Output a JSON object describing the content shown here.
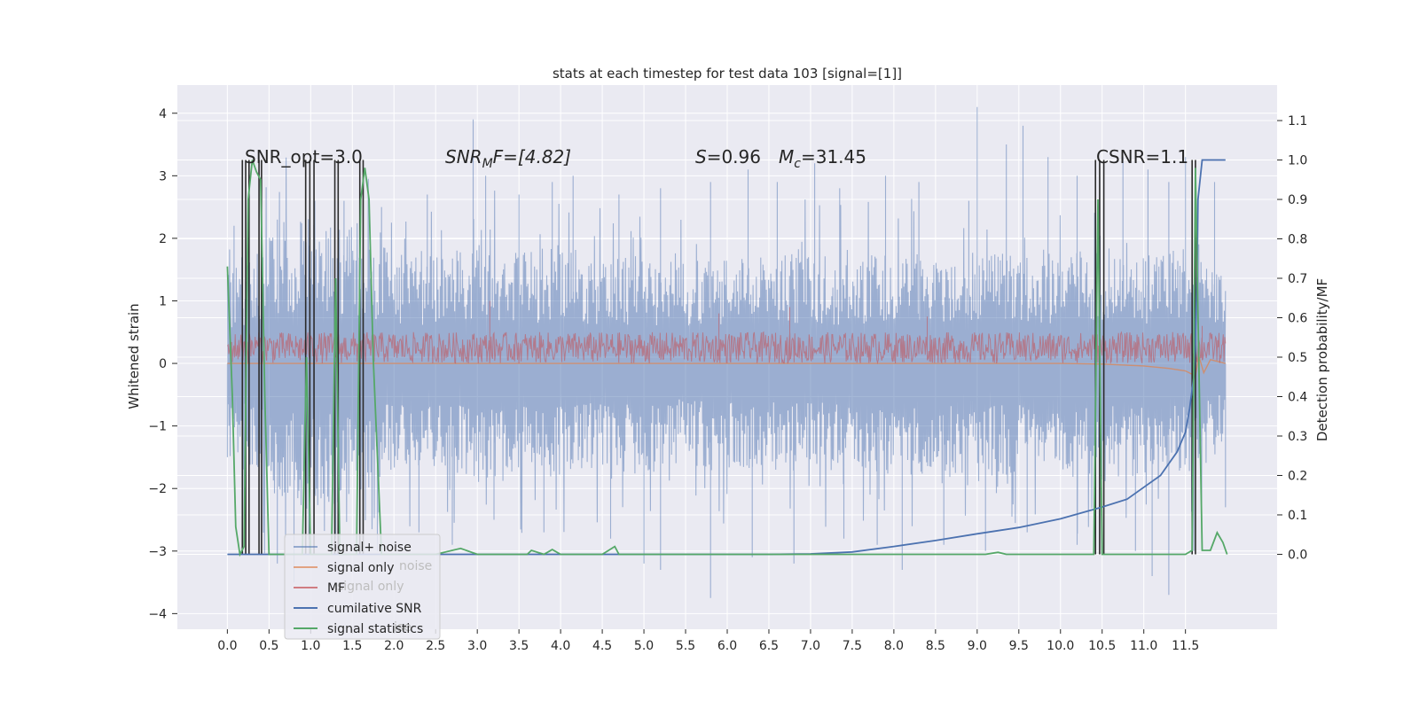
{
  "chart_data": {
    "type": "line",
    "title": "stats at each timestep for test data 103 [signal=[1]]",
    "xlabel": "",
    "ylabel": "Whitened strain",
    "y2label": "Detection probability/MF",
    "xlim": [
      -0.6,
      12.6
    ],
    "ylim": [
      -4.25,
      4.45
    ],
    "y2lim": [
      -0.19,
      1.19
    ],
    "xticks": [
      "0.0",
      "0.5",
      "1.0",
      "1.5",
      "2.0",
      "2.5",
      "3.0",
      "3.5",
      "4.0",
      "4.5",
      "5.0",
      "5.5",
      "6.0",
      "6.5",
      "7.0",
      "7.5",
      "8.0",
      "8.5",
      "9.0",
      "9.5",
      "10.0",
      "10.5",
      "11.0",
      "11.5"
    ],
    "yticks": [
      "4",
      "3",
      "2",
      "1",
      "0",
      "−1",
      "−2",
      "−3",
      "−4"
    ],
    "y2ticks": [
      "1.1",
      "1.0",
      "0.9",
      "0.8",
      "0.7",
      "0.6",
      "0.5",
      "0.4",
      "0.3",
      "0.2",
      "0.1",
      "0.0"
    ],
    "grid": true,
    "legend_position": "lower-left",
    "annotations": {
      "snr_opt": "SNR_opt=3.0",
      "snr_mf_name": "SNR",
      "snr_mf_sub": "M",
      "snr_mf_rest": "F=[4.82]",
      "s_name": "S",
      "s_rest": "=0.96",
      "mc_name": "M",
      "mc_sub": "c",
      "mc_rest": "=31.45",
      "csnr": "CSNR=1.1"
    },
    "legend": {
      "entries": [
        "signal+ noise",
        "signal only",
        "MF",
        "cumilative SNR",
        "signal statistics"
      ],
      "ghost": [
        "noise",
        "signal only",
        "ise"
      ]
    },
    "series": [
      {
        "name": "signal+ noise",
        "axis": "left",
        "color": "#4c72b0",
        "x_range": [
          0.0,
          11.98
        ],
        "envelope_upper": [
          [
            0.0,
            1.5
          ],
          [
            0.5,
            2.1
          ],
          [
            1.0,
            2.4
          ],
          [
            1.5,
            2.2
          ],
          [
            2.0,
            1.8
          ],
          [
            2.5,
            1.7
          ],
          [
            3.0,
            1.9
          ],
          [
            3.5,
            1.8
          ],
          [
            4.0,
            1.9
          ],
          [
            4.5,
            1.7
          ],
          [
            5.0,
            1.8
          ],
          [
            5.5,
            1.6
          ],
          [
            6.0,
            1.8
          ],
          [
            6.5,
            1.7
          ],
          [
            7.0,
            1.8
          ],
          [
            7.5,
            1.7
          ],
          [
            8.0,
            1.8
          ],
          [
            8.5,
            1.8
          ],
          [
            9.0,
            1.9
          ],
          [
            9.5,
            1.8
          ],
          [
            10.0,
            1.8
          ],
          [
            10.5,
            1.9
          ],
          [
            11.0,
            1.8
          ],
          [
            11.5,
            1.9
          ],
          [
            11.98,
            1.3
          ]
        ],
        "peaks": [
          [
            0.08,
            2.2
          ],
          [
            0.6,
            2.3
          ],
          [
            1.05,
            2.6
          ],
          [
            1.4,
            2.6
          ],
          [
            1.85,
            2.5
          ],
          [
            2.4,
            2.7
          ],
          [
            2.95,
            3.9
          ],
          [
            3.1,
            3.0
          ],
          [
            3.5,
            2.7
          ],
          [
            3.9,
            2.9
          ],
          [
            4.15,
            3.0
          ],
          [
            4.7,
            2.7
          ],
          [
            5.2,
            2.8
          ],
          [
            5.8,
            2.9
          ],
          [
            6.25,
            3.1
          ],
          [
            6.6,
            2.9
          ],
          [
            7.05,
            3.2
          ],
          [
            7.35,
            2.8
          ],
          [
            7.9,
            3.0
          ],
          [
            8.3,
            2.9
          ],
          [
            8.9,
            2.6
          ],
          [
            9.0,
            4.1
          ],
          [
            9.35,
            3.5
          ],
          [
            9.55,
            3.8
          ],
          [
            9.85,
            3.3
          ],
          [
            10.2,
            3.0
          ],
          [
            10.75,
            3.3
          ],
          [
            11.05,
            3.1
          ],
          [
            11.3,
            2.9
          ],
          [
            11.5,
            3.3
          ],
          [
            11.85,
            2.9
          ]
        ],
        "troughs": [
          [
            0.0,
            -1.5
          ],
          [
            0.2,
            -2.5
          ],
          [
            0.6,
            -3.2
          ],
          [
            0.8,
            -3.5
          ],
          [
            1.3,
            -2.8
          ],
          [
            1.8,
            -3.0
          ],
          [
            2.3,
            -2.7
          ],
          [
            2.7,
            -2.9
          ],
          [
            3.2,
            -2.5
          ],
          [
            3.8,
            -2.7
          ],
          [
            4.6,
            -2.8
          ],
          [
            5.0,
            -3.2
          ],
          [
            5.2,
            -3.3
          ],
          [
            5.8,
            -3.75
          ],
          [
            6.3,
            -3.1
          ],
          [
            6.8,
            -3.2
          ],
          [
            7.4,
            -2.8
          ],
          [
            7.8,
            -2.9
          ],
          [
            8.1,
            -3.3
          ],
          [
            8.6,
            -2.9
          ],
          [
            9.1,
            -3.0
          ],
          [
            9.6,
            -2.7
          ],
          [
            10.2,
            -2.9
          ],
          [
            10.9,
            -3.0
          ],
          [
            11.1,
            -3.4
          ],
          [
            11.3,
            -3.7
          ],
          [
            11.6,
            -3.0
          ],
          [
            11.98,
            -2.3
          ]
        ]
      },
      {
        "name": "signal only",
        "axis": "left",
        "color": "#dd8452",
        "points": [
          [
            0.0,
            0.0
          ],
          [
            10.0,
            0.0
          ],
          [
            10.5,
            -0.01
          ],
          [
            11.0,
            -0.04
          ],
          [
            11.3,
            -0.08
          ],
          [
            11.5,
            -0.12
          ],
          [
            11.62,
            -0.2
          ],
          [
            11.66,
            0.12
          ],
          [
            11.72,
            -0.15
          ],
          [
            11.8,
            0.06
          ],
          [
            11.98,
            0.0
          ]
        ]
      },
      {
        "name": "MF",
        "axis": "left",
        "color": "#c44e52",
        "typical_band": [
          0.0,
          0.5
        ],
        "peaks": [
          [
            3.15,
            1.0
          ],
          [
            5.9,
            0.8
          ],
          [
            6.75,
            0.9
          ],
          [
            8.4,
            0.75
          ],
          [
            11.7,
            0.6
          ]
        ]
      },
      {
        "name": "cumilative SNR",
        "axis": "right",
        "color": "#4c72b0",
        "points": [
          [
            0.0,
            0.0
          ],
          [
            6.0,
            0.0
          ],
          [
            6.5,
            0.0
          ],
          [
            7.0,
            0.001
          ],
          [
            7.5,
            0.006
          ],
          [
            8.0,
            0.02
          ],
          [
            8.5,
            0.035
          ],
          [
            9.0,
            0.052
          ],
          [
            9.5,
            0.068
          ],
          [
            10.0,
            0.09
          ],
          [
            10.5,
            0.12
          ],
          [
            10.8,
            0.14
          ],
          [
            11.0,
            0.17
          ],
          [
            11.2,
            0.2
          ],
          [
            11.4,
            0.26
          ],
          [
            11.5,
            0.31
          ],
          [
            11.55,
            0.37
          ],
          [
            11.6,
            0.45
          ],
          [
            11.62,
            0.55
          ],
          [
            11.64,
            0.7
          ],
          [
            11.65,
            0.9
          ],
          [
            11.7,
            1.0
          ],
          [
            11.98,
            1.0
          ]
        ]
      },
      {
        "name": "signal statistics",
        "axis": "right",
        "color": "#55a868",
        "points": [
          [
            0.0,
            0.73
          ],
          [
            0.06,
            0.4
          ],
          [
            0.1,
            0.07
          ],
          [
            0.15,
            0.0
          ],
          [
            0.2,
            0.02
          ],
          [
            0.25,
            0.9
          ],
          [
            0.3,
            1.0
          ],
          [
            0.35,
            0.97
          ],
          [
            0.4,
            0.95
          ],
          [
            0.45,
            0.4
          ],
          [
            0.5,
            0.0
          ],
          [
            0.9,
            0.0
          ],
          [
            0.95,
            0.5
          ],
          [
            1.0,
            0.0
          ],
          [
            1.25,
            0.0
          ],
          [
            1.3,
            0.7
          ],
          [
            1.35,
            0.0
          ],
          [
            1.55,
            0.0
          ],
          [
            1.6,
            0.9
          ],
          [
            1.65,
            0.98
          ],
          [
            1.7,
            0.9
          ],
          [
            1.75,
            0.5
          ],
          [
            1.85,
            0.0
          ],
          [
            2.5,
            0.0
          ],
          [
            2.7,
            0.01
          ],
          [
            2.8,
            0.015
          ],
          [
            3.0,
            0.0
          ],
          [
            3.6,
            0.0
          ],
          [
            3.65,
            0.01
          ],
          [
            3.8,
            0.0
          ],
          [
            3.9,
            0.012
          ],
          [
            4.0,
            0.0
          ],
          [
            4.5,
            0.0
          ],
          [
            4.65,
            0.02
          ],
          [
            4.7,
            0.0
          ],
          [
            9.1,
            0.0
          ],
          [
            9.25,
            0.005
          ],
          [
            9.35,
            0.0
          ],
          [
            10.4,
            0.0
          ],
          [
            10.45,
            0.9
          ],
          [
            10.5,
            0.0
          ],
          [
            11.5,
            0.0
          ],
          [
            11.58,
            0.01
          ],
          [
            11.62,
            0.98
          ],
          [
            11.7,
            0.01
          ],
          [
            11.8,
            0.01
          ],
          [
            11.88,
            0.055
          ],
          [
            11.95,
            0.03
          ],
          [
            12.0,
            0.0
          ]
        ]
      }
    ],
    "vertical_markers_x": [
      0.18,
      0.22,
      0.26,
      0.38,
      0.41,
      0.94,
      0.99,
      1.04,
      1.29,
      1.33,
      1.59,
      1.63,
      10.42,
      10.47,
      10.52,
      11.58,
      11.62
    ],
    "colors": {
      "background": "#eaeaf2",
      "grid": "#ffffff",
      "text": "#262626",
      "marker": "#2b2b2b"
    }
  }
}
